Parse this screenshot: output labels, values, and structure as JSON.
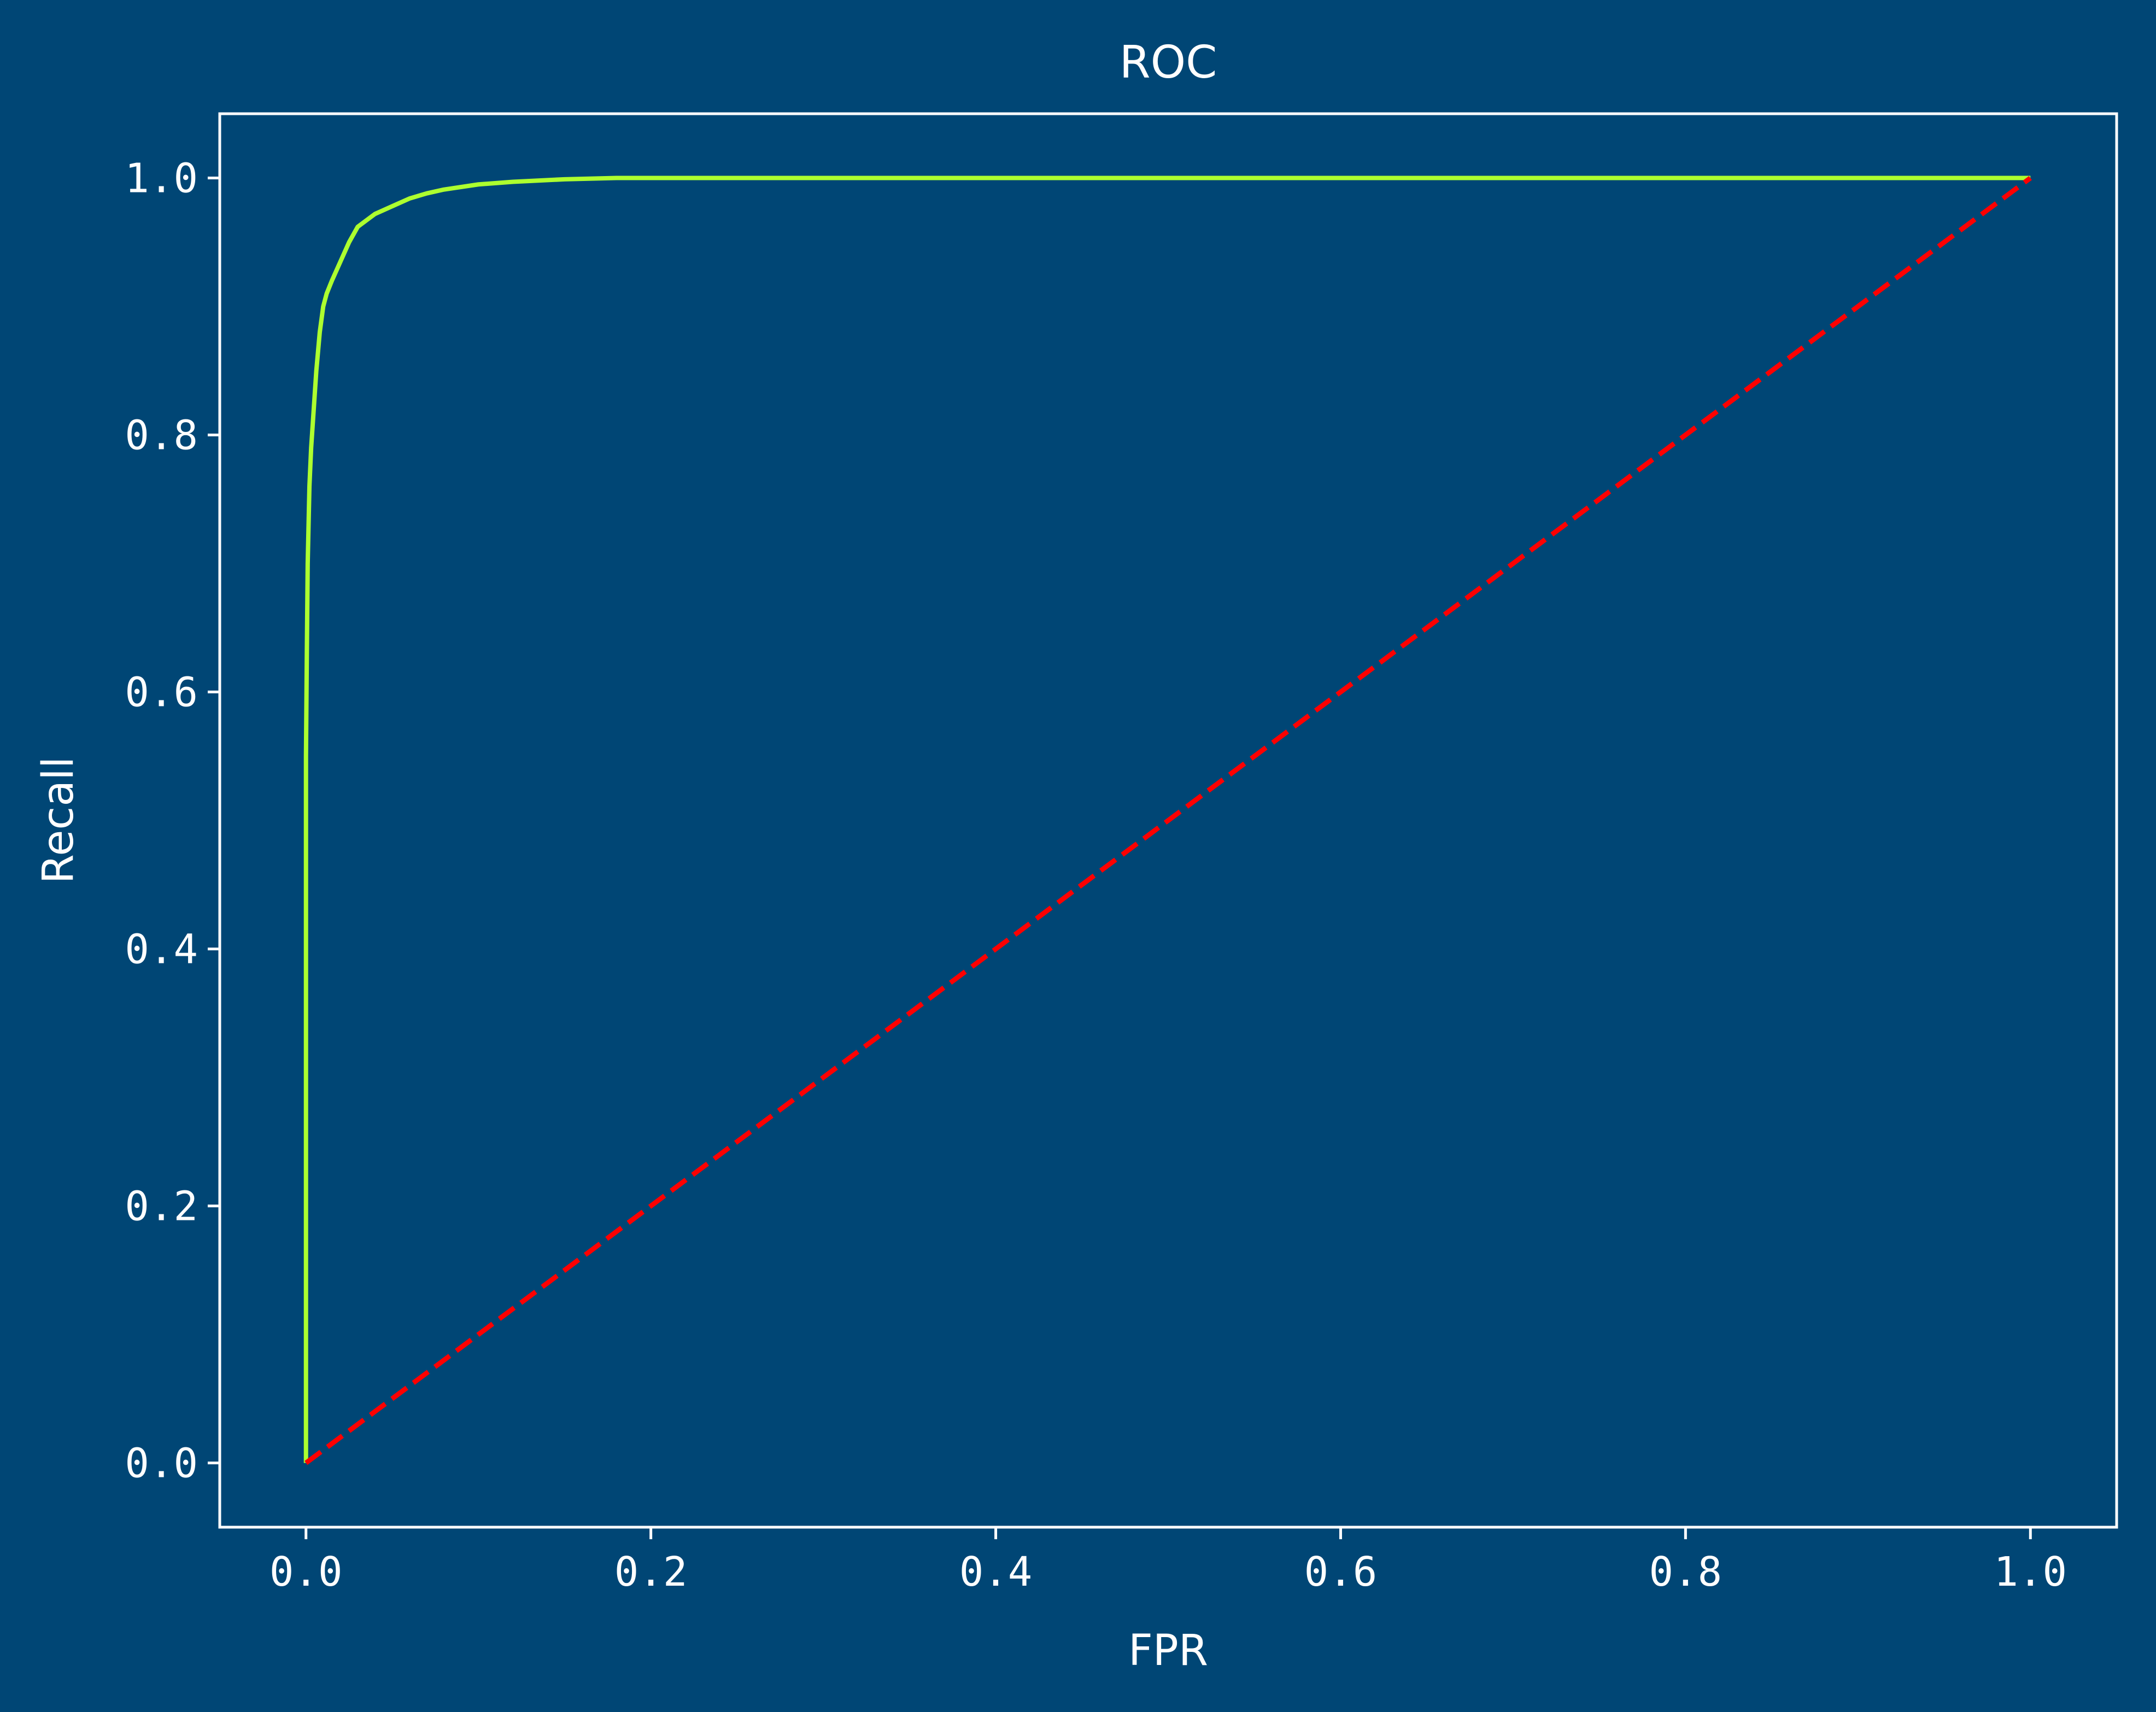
{
  "colors": {
    "background": "#004675",
    "axes": "#ffffff",
    "text": "#ffffff"
  },
  "chart_data": {
    "type": "line",
    "title": "ROC",
    "xlabel": "FPR",
    "ylabel": "Recall",
    "xlim": [
      -0.05,
      1.05
    ],
    "ylim": [
      -0.05,
      1.05
    ],
    "xticks": [
      0.0,
      0.2,
      0.4,
      0.6,
      0.8,
      1.0
    ],
    "xtick_labels": [
      "0.0",
      "0.2",
      "0.4",
      "0.6",
      "0.8",
      "1.0"
    ],
    "yticks": [
      0.0,
      0.2,
      0.4,
      0.6,
      0.8,
      1.0
    ],
    "ytick_labels": [
      "0.0",
      "0.2",
      "0.4",
      "0.6",
      "0.8",
      "1.0"
    ],
    "grid": false,
    "series": [
      {
        "style": "solid",
        "color": "#adff2f",
        "x": [
          0.0,
          0.0,
          0.0005,
          0.001,
          0.002,
          0.003,
          0.004,
          0.005,
          0.006,
          0.008,
          0.01,
          0.012,
          0.015,
          0.02,
          0.025,
          0.03,
          0.04,
          0.05,
          0.06,
          0.07,
          0.08,
          0.1,
          0.12,
          0.15,
          0.18,
          0.25,
          0.4,
          0.6,
          0.8,
          1.0
        ],
        "y": [
          0.0,
          0.55,
          0.63,
          0.7,
          0.76,
          0.79,
          0.81,
          0.83,
          0.85,
          0.88,
          0.9,
          0.91,
          0.92,
          0.935,
          0.95,
          0.962,
          0.972,
          0.978,
          0.984,
          0.988,
          0.991,
          0.995,
          0.997,
          0.999,
          1.0,
          1.0,
          1.0,
          1.0,
          1.0,
          1.0
        ]
      },
      {
        "style": "dashed",
        "color": "#ff0000",
        "x": [
          0.0,
          1.0
        ],
        "y": [
          0.0,
          1.0
        ]
      }
    ]
  }
}
